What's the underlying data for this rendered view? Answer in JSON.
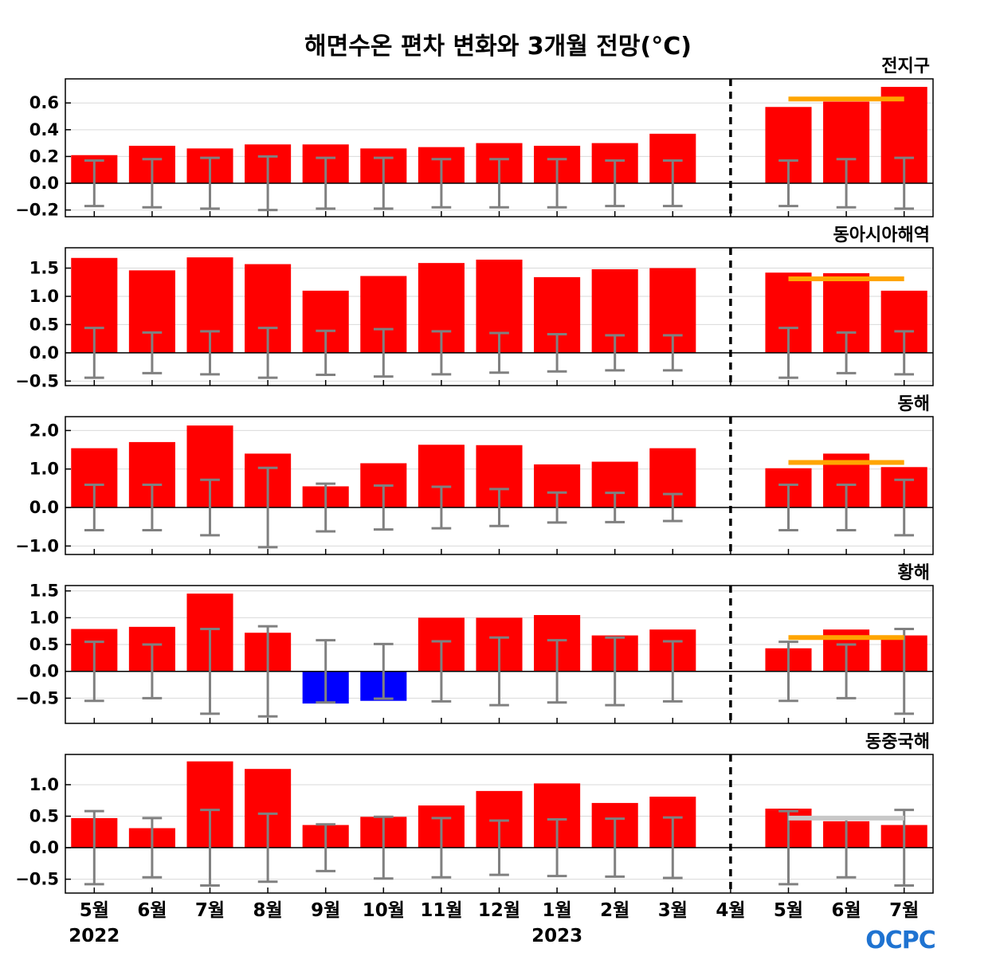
{
  "title": "해면수온 편차 변화와 3개월 전망(°C)",
  "logo": "OCPC",
  "colors": {
    "positive_bar": "#ff0000",
    "negative_bar": "#0000ff",
    "error_bar": "#808080",
    "outlook_line": "#ffa500",
    "outlook_line_neutral": "#c8c8c8",
    "grid": "#d9d9d9",
    "zero_line": "#000000",
    "divider": "#000000"
  },
  "chart_data": {
    "type": "bar",
    "categories": [
      "5월",
      "6월",
      "7월",
      "8월",
      "9월",
      "10월",
      "11월",
      "12월",
      "1월",
      "2월",
      "3월",
      "4월",
      "5월",
      "6월",
      "7월"
    ],
    "year_labels": [
      {
        "label": "2022",
        "category_index": 0
      },
      {
        "label": "2023",
        "category_index": 8
      }
    ],
    "divider_after_category_index": 11,
    "grid": true,
    "panels": [
      {
        "name": "전지구",
        "ylim": [
          -0.25,
          0.78
        ],
        "yticks": [
          -0.2,
          0.0,
          0.2,
          0.4,
          0.6
        ],
        "ytick_labels": [
          "−0.2",
          "0.0",
          "0.2",
          "0.4",
          "0.6"
        ],
        "values": [
          0.21,
          0.28,
          0.26,
          0.29,
          0.29,
          0.26,
          0.27,
          0.3,
          0.28,
          0.3,
          0.37,
          null,
          0.57,
          0.61,
          0.72
        ],
        "error_half_range": [
          0.17,
          0.18,
          0.19,
          0.2,
          0.19,
          0.19,
          0.18,
          0.18,
          0.18,
          0.17,
          0.17,
          null,
          0.17,
          0.18,
          0.19
        ],
        "outlook": {
          "value": 0.63,
          "from_index": 12,
          "to_index": 14,
          "color": "orange"
        }
      },
      {
        "name": "동아시아해역",
        "ylim": [
          -0.58,
          1.86
        ],
        "yticks": [
          -0.5,
          0.0,
          0.5,
          1.0,
          1.5
        ],
        "ytick_labels": [
          "−0.5",
          "0.0",
          "0.5",
          "1.0",
          "1.5"
        ],
        "values": [
          1.68,
          1.46,
          1.69,
          1.57,
          1.1,
          1.36,
          1.59,
          1.65,
          1.34,
          1.48,
          1.5,
          null,
          1.42,
          1.41,
          1.1
        ],
        "error_half_range": [
          0.44,
          0.36,
          0.38,
          0.44,
          0.39,
          0.42,
          0.38,
          0.35,
          0.33,
          0.31,
          0.31,
          null,
          0.44,
          0.36,
          0.38
        ],
        "outlook": {
          "value": 1.31,
          "from_index": 12,
          "to_index": 14,
          "color": "orange"
        }
      },
      {
        "name": "동해",
        "ylim": [
          -1.22,
          2.36
        ],
        "yticks": [
          -1.0,
          0.0,
          1.0,
          2.0
        ],
        "ytick_labels": [
          "−1.0",
          "0.0",
          "1.0",
          "2.0"
        ],
        "values": [
          1.54,
          1.7,
          2.13,
          1.4,
          0.55,
          1.15,
          1.63,
          1.62,
          1.12,
          1.19,
          1.54,
          null,
          1.02,
          1.4,
          1.05
        ],
        "error_half_range": [
          0.59,
          0.59,
          0.72,
          1.03,
          0.62,
          0.57,
          0.54,
          0.48,
          0.39,
          0.38,
          0.35,
          null,
          0.59,
          0.59,
          0.72
        ],
        "outlook": {
          "value": 1.17,
          "from_index": 12,
          "to_index": 14,
          "color": "orange"
        }
      },
      {
        "name": "황해",
        "ylim": [
          -0.97,
          1.6
        ],
        "yticks": [
          -0.5,
          0.0,
          0.5,
          1.0,
          1.5
        ],
        "ytick_labels": [
          "−0.5",
          "0.0",
          "0.5",
          "1.0",
          "1.5"
        ],
        "values": [
          0.79,
          0.83,
          1.45,
          0.72,
          -0.6,
          -0.55,
          1.0,
          1.0,
          1.05,
          0.67,
          0.78,
          null,
          0.43,
          0.78,
          0.67
        ],
        "error_half_range": [
          0.55,
          0.5,
          0.79,
          0.84,
          0.58,
          0.51,
          0.56,
          0.63,
          0.58,
          0.63,
          0.56,
          null,
          0.55,
          0.5,
          0.79
        ],
        "outlook": {
          "value": 0.63,
          "from_index": 12,
          "to_index": 14,
          "color": "orange"
        }
      },
      {
        "name": "동중국해",
        "ylim": [
          -0.72,
          1.48
        ],
        "yticks": [
          -0.5,
          0.0,
          0.5,
          1.0
        ],
        "ytick_labels": [
          "−0.5",
          "0.0",
          "0.5",
          "1.0"
        ],
        "values": [
          0.47,
          0.31,
          1.37,
          1.25,
          0.36,
          0.49,
          0.67,
          0.9,
          1.02,
          0.71,
          0.81,
          null,
          0.62,
          0.42,
          0.36
        ],
        "error_half_range": [
          0.58,
          0.47,
          0.6,
          0.54,
          0.37,
          0.49,
          0.47,
          0.43,
          0.45,
          0.46,
          0.48,
          null,
          0.58,
          0.47,
          0.6
        ],
        "outlook": {
          "value": 0.47,
          "from_index": 12,
          "to_index": 14,
          "color": "neutral"
        }
      }
    ]
  }
}
